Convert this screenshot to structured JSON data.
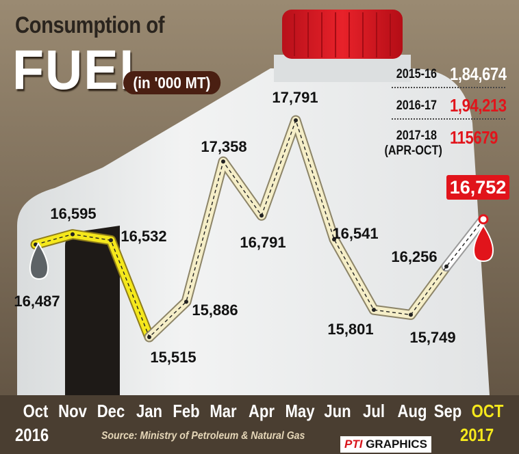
{
  "title": {
    "line1": "Consumption of",
    "line2": "FUEL",
    "unit": "(in '000 MT)"
  },
  "summary": [
    {
      "label": "2015-16",
      "value": "1,84,674",
      "color": "#ffffff"
    },
    {
      "label": "2016-17",
      "value": "1,94,213",
      "color": "#e1141b"
    },
    {
      "label": "2017-18\n(APR-OCT)",
      "value": "115679",
      "color": "#e1141b"
    }
  ],
  "chart_data": {
    "type": "line",
    "title": "Consumption of FUEL",
    "ylabel": "(in '000 MT)",
    "categories": [
      "Oct",
      "Nov",
      "Dec",
      "Jan",
      "Feb",
      "Mar",
      "Apr",
      "May",
      "Jun",
      "Jul",
      "Aug",
      "Sep",
      "OCT"
    ],
    "values": [
      16487,
      16595,
      16532,
      15515,
      15886,
      17358,
      16791,
      17791,
      16541,
      15801,
      15749,
      16256,
      16752
    ],
    "labels": [
      "16,487",
      "16,595",
      "16,532",
      "15,515",
      "15,886",
      "17,358",
      "16,791",
      "17,791",
      "16,541",
      "15,801",
      "15,749",
      "16,256",
      "16,752"
    ],
    "colors": {
      "2016_line": "#f5e81c",
      "2017_line": "#f5eec8",
      "oct2017_line": "#ffffff",
      "highlight": "#e1141b"
    }
  },
  "footer": {
    "year_start": "2016",
    "year_end": "2017",
    "source": "Source: Ministry of Petroleum & Natural Gas",
    "credit_mark": "PTI",
    "credit_text": "GRAPHICS"
  }
}
